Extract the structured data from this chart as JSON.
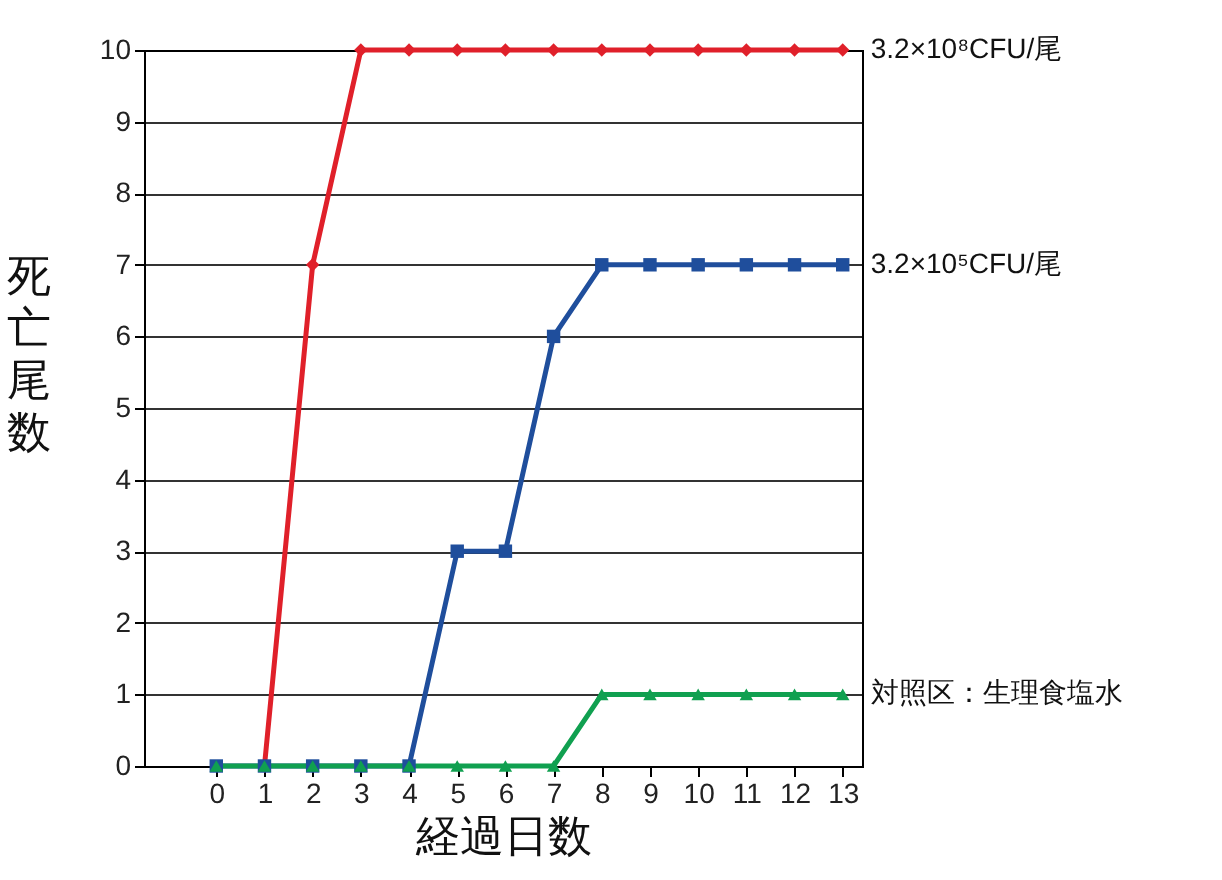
{
  "chart_data": {
    "type": "line",
    "xlabel": "経過日数",
    "ylabel": "死亡尾数",
    "x": [
      0,
      1,
      2,
      3,
      4,
      5,
      6,
      7,
      8,
      9,
      10,
      11,
      12,
      13
    ],
    "series": [
      {
        "name": "3.2×10⁸CFU/尾",
        "color": "#e0202a",
        "marker": "diamond",
        "x": [
          1,
          2,
          3,
          4,
          5,
          6,
          7,
          8,
          9,
          10,
          11,
          12,
          13
        ],
        "values": [
          0,
          7,
          10,
          10,
          10,
          10,
          10,
          10,
          10,
          10,
          10,
          10,
          10
        ]
      },
      {
        "name": "3.2×10⁵CFU/尾",
        "color": "#1f4e9c",
        "marker": "square",
        "values": [
          0,
          0,
          0,
          0,
          0,
          3,
          3,
          6,
          7,
          7,
          7,
          7,
          7,
          7
        ]
      },
      {
        "name": "対照区：生理食塩水",
        "color": "#10a050",
        "marker": "triangle",
        "values": [
          0,
          0,
          0,
          0,
          0,
          0,
          0,
          0,
          1,
          1,
          1,
          1,
          1,
          1
        ]
      }
    ],
    "xlim": [
      -1.5,
      13.4
    ],
    "xticks": [
      0,
      1,
      2,
      3,
      4,
      5,
      6,
      7,
      8,
      9,
      10,
      11,
      12,
      13
    ],
    "ylim": [
      0,
      10
    ],
    "yticks": [
      0,
      1,
      2,
      3,
      4,
      5,
      6,
      7,
      8,
      9,
      10
    ],
    "grid": "y",
    "legend": false,
    "line_style": "solid"
  }
}
